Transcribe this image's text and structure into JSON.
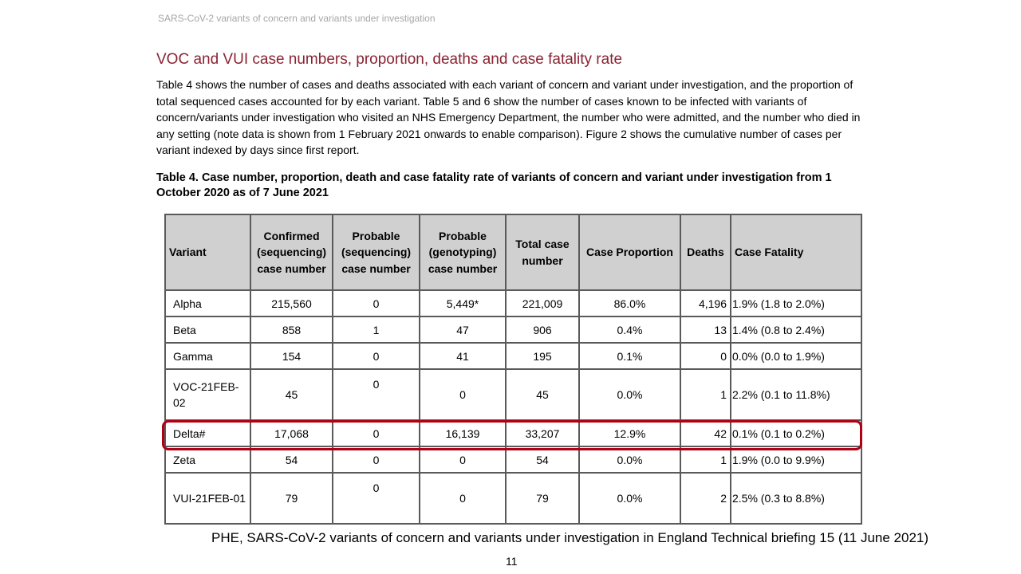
{
  "running_header": "SARS-CoV-2 variants of concern and variants under investigation",
  "section_title": "VOC and VUI case numbers, proportion, deaths and case fatality rate",
  "intro_text": "Table 4 shows the number of cases and deaths associated with each variant of concern and variant under investigation, and the proportion of total sequenced cases accounted for by each variant. Table 5 and 6 show the number of cases known to be infected with variants of concern/variants under investigation who visited an NHS Emergency Department, the number who were admitted, and the number who died in any setting (note data is shown from 1 February 2021 onwards to enable comparison). Figure 2 shows the cumulative number of cases per variant indexed by days since first report.",
  "table_caption": "Table 4. Case number, proportion, death and case fatality rate of variants of concern and variant under investigation from 1 October 2020 as of 7 June 2021",
  "table": {
    "headers": {
      "variant": "Variant",
      "confirmed": "Confirmed (sequencing) case number",
      "probable_seq": "Probable (sequencing) case number",
      "probable_geno": "Probable (genotyping) case number",
      "total": "Total case number",
      "proportion": "Case Proportion",
      "deaths": "Deaths",
      "fatality": "Case Fatality"
    },
    "rows": [
      {
        "variant": "Alpha",
        "confirmed": "215,560",
        "probable_seq": "0",
        "probable_geno": "5,449*",
        "total": "221,009",
        "proportion": "86.0%",
        "deaths": "4,196",
        "fatality": "1.9% (1.8 to 2.0%)"
      },
      {
        "variant": "Beta",
        "confirmed": "858",
        "probable_seq": "1",
        "probable_geno": "47",
        "total": "906",
        "proportion": "0.4%",
        "deaths": "13",
        "fatality": "1.4% (0.8 to 2.4%)"
      },
      {
        "variant": "Gamma",
        "confirmed": "154",
        "probable_seq": "0",
        "probable_geno": "41",
        "total": "195",
        "proportion": "0.1%",
        "deaths": "0",
        "fatality": "0.0% (0.0 to 1.9%)"
      },
      {
        "variant": "VOC-21FEB-02",
        "confirmed": "45",
        "probable_seq": "0",
        "probable_geno": "0",
        "total": "45",
        "proportion": "0.0%",
        "deaths": "1",
        "fatality": "2.2% (0.1 to 11.8%)"
      },
      {
        "variant": "Delta#",
        "confirmed": "17,068",
        "probable_seq": "0",
        "probable_geno": "16,139",
        "total": "33,207",
        "proportion": "12.9%",
        "deaths": "42",
        "fatality": "0.1% (0.1 to 0.2%)"
      },
      {
        "variant": "Zeta",
        "confirmed": "54",
        "probable_seq": "0",
        "probable_geno": "0",
        "total": "54",
        "proportion": "0.0%",
        "deaths": "1",
        "fatality": "1.9% (0.0 to 9.9%)"
      },
      {
        "variant": "VUI-21FEB-01",
        "confirmed": "79",
        "probable_seq": "0",
        "probable_geno": "0",
        "total": "79",
        "proportion": "0.0%",
        "deaths": "2",
        "fatality": "2.5% (0.3 to 8.8%)"
      }
    ]
  },
  "highlight_color": "#b00014",
  "source_citation": "PHE, SARS-CoV-2 variants of concern and variants under investigation in England Technical briefing 15 (11 June 2021)",
  "page_number": "11"
}
